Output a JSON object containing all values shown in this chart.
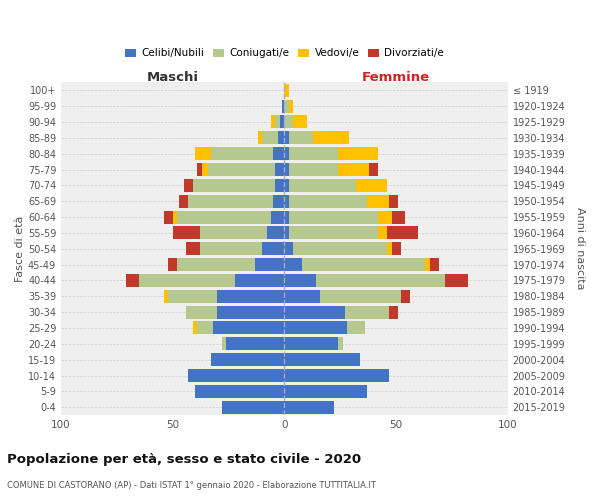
{
  "age_groups": [
    "0-4",
    "5-9",
    "10-14",
    "15-19",
    "20-24",
    "25-29",
    "30-34",
    "35-39",
    "40-44",
    "45-49",
    "50-54",
    "55-59",
    "60-64",
    "65-69",
    "70-74",
    "75-79",
    "80-84",
    "85-89",
    "90-94",
    "95-99",
    "100+"
  ],
  "birth_years": [
    "2015-2019",
    "2010-2014",
    "2005-2009",
    "2000-2004",
    "1995-1999",
    "1990-1994",
    "1985-1989",
    "1980-1984",
    "1975-1979",
    "1970-1974",
    "1965-1969",
    "1960-1964",
    "1955-1959",
    "1950-1954",
    "1945-1949",
    "1940-1944",
    "1935-1939",
    "1930-1934",
    "1925-1929",
    "1920-1924",
    "≤ 1919"
  ],
  "males": {
    "celibe": [
      28,
      40,
      43,
      33,
      26,
      32,
      30,
      30,
      22,
      13,
      10,
      8,
      6,
      5,
      4,
      4,
      5,
      3,
      2,
      1,
      0
    ],
    "coniugato": [
      0,
      0,
      0,
      0,
      2,
      7,
      14,
      22,
      43,
      35,
      28,
      30,
      42,
      38,
      37,
      30,
      28,
      7,
      2,
      0,
      0
    ],
    "vedovo": [
      0,
      0,
      0,
      0,
      0,
      2,
      0,
      2,
      0,
      0,
      0,
      0,
      2,
      0,
      0,
      3,
      7,
      2,
      2,
      0,
      0
    ],
    "divorziato": [
      0,
      0,
      0,
      0,
      0,
      0,
      0,
      0,
      6,
      4,
      6,
      12,
      4,
      4,
      4,
      2,
      0,
      0,
      0,
      0,
      0
    ]
  },
  "females": {
    "nubile": [
      22,
      37,
      47,
      34,
      24,
      28,
      27,
      16,
      14,
      8,
      4,
      2,
      2,
      2,
      2,
      2,
      2,
      2,
      0,
      0,
      0
    ],
    "coniugata": [
      0,
      0,
      0,
      0,
      2,
      8,
      20,
      36,
      58,
      55,
      42,
      40,
      40,
      35,
      30,
      22,
      22,
      11,
      4,
      2,
      0
    ],
    "vedova": [
      0,
      0,
      0,
      0,
      0,
      0,
      0,
      0,
      0,
      2,
      2,
      4,
      6,
      10,
      14,
      14,
      18,
      16,
      6,
      2,
      2
    ],
    "divorziata": [
      0,
      0,
      0,
      0,
      0,
      0,
      4,
      4,
      10,
      4,
      4,
      14,
      6,
      4,
      0,
      4,
      0,
      0,
      0,
      0,
      0
    ]
  },
  "color_celibe": "#4472c4",
  "color_coniugato": "#b5c98e",
  "color_vedovo": "#ffc000",
  "color_divorziato": "#c0392b",
  "title": "Popolazione per età, sesso e stato civile - 2020",
  "subtitle": "COMUNE DI CASTORANO (AP) - Dati ISTAT 1° gennaio 2020 - Elaborazione TUTTITALIA.IT",
  "ylabel_left": "Fasce di età",
  "ylabel_right": "Anni di nascita",
  "xlabel_left": "Maschi",
  "xlabel_right": "Femmine",
  "xlim": 100,
  "background_color": "#ffffff",
  "plot_bg_color": "#efefef",
  "grid_color": "#cccccc",
  "legend_labels": [
    "Celibi/Nubili",
    "Coniugati/e",
    "Vedovi/e",
    "Divorziati/e"
  ]
}
